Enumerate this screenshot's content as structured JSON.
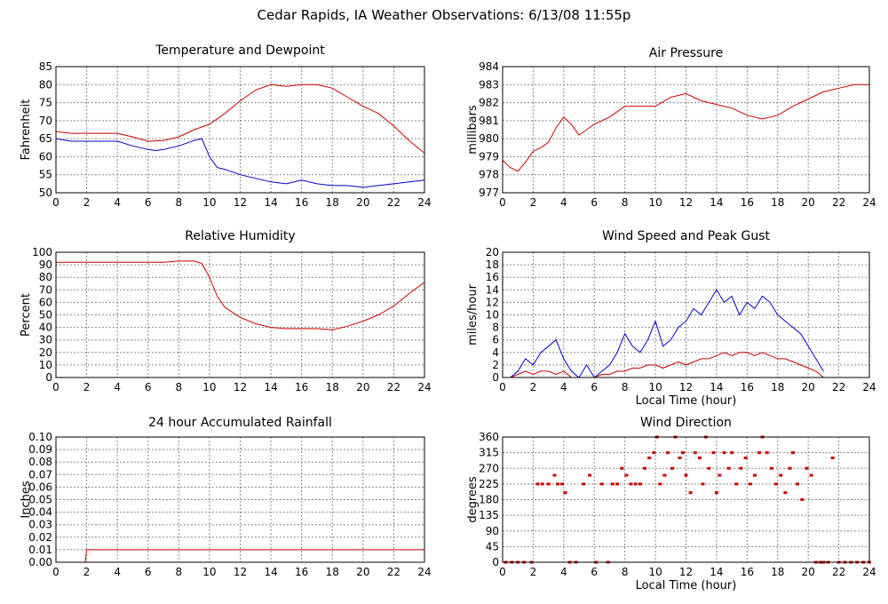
{
  "page": {
    "title": "Cedar Rapids, IA Weather Observations: 6/13/08 11:55p"
  },
  "chart_data": [
    {
      "id": "temp",
      "type": "line",
      "title": "Temperature and Dewpoint",
      "xlabel": "",
      "ylabel": "Fahrenheit",
      "xlim": [
        0,
        24
      ],
      "ylim": [
        50,
        85
      ],
      "xticks": [
        0,
        2,
        4,
        6,
        8,
        10,
        12,
        14,
        16,
        18,
        20,
        22,
        24
      ],
      "yticks": [
        50,
        55,
        60,
        65,
        70,
        75,
        80,
        85
      ],
      "grid": true,
      "series": [
        {
          "color": "#cc0000",
          "x": [
            0,
            1,
            2,
            3,
            4,
            5,
            6,
            7,
            8,
            9,
            10,
            11,
            12,
            13,
            14,
            15,
            16,
            17,
            18,
            19,
            20,
            21,
            22,
            23,
            24
          ],
          "y": [
            67,
            66.5,
            66.5,
            66.5,
            66.5,
            65.5,
            64.3,
            64.5,
            65.5,
            67.5,
            69,
            72,
            75.5,
            78.5,
            80,
            79.5,
            80,
            80,
            79,
            76.5,
            74,
            72,
            68.5,
            64.5,
            61
          ]
        },
        {
          "color": "#0000cc",
          "x": [
            0,
            1,
            2,
            3,
            4,
            5,
            6,
            6.5,
            7,
            8,
            9,
            9.5,
            10,
            10.5,
            11,
            12,
            13,
            14,
            15,
            16,
            17,
            18,
            19,
            20,
            21,
            22,
            23,
            24
          ],
          "y": [
            65,
            64.3,
            64.3,
            64.3,
            64.3,
            63,
            62,
            61.7,
            62,
            63,
            64.5,
            65,
            60,
            57,
            56.5,
            55,
            54,
            53,
            52.5,
            53.5,
            52.5,
            52,
            52,
            51.5,
            52,
            52.5,
            53,
            53.5
          ]
        }
      ]
    },
    {
      "id": "pressure",
      "type": "line",
      "title": "Air Pressure",
      "xlabel": "",
      "ylabel": "millibars",
      "xlim": [
        0,
        24
      ],
      "ylim": [
        977,
        984
      ],
      "xticks": [
        0,
        2,
        4,
        6,
        8,
        10,
        12,
        14,
        16,
        18,
        20,
        22,
        24
      ],
      "yticks": [
        977,
        978,
        979,
        980,
        981,
        982,
        983,
        984
      ],
      "grid": true,
      "series": [
        {
          "color": "#cc0000",
          "x": [
            0,
            0.5,
            1,
            1.5,
            2,
            2.5,
            3,
            3.5,
            4,
            4.5,
            5,
            6,
            7,
            8,
            9,
            10,
            11,
            12,
            13,
            14,
            15,
            16,
            17,
            18,
            19,
            20,
            21,
            22,
            23,
            24
          ],
          "y": [
            978.8,
            978.4,
            978.2,
            978.7,
            979.3,
            979.5,
            979.8,
            980.6,
            981.2,
            980.8,
            980.2,
            980.8,
            981.2,
            981.8,
            981.8,
            981.8,
            982.3,
            982.5,
            982.1,
            981.9,
            981.7,
            981.3,
            981.1,
            981.3,
            981.8,
            982.2,
            982.6,
            982.8,
            983.0,
            983.0
          ]
        }
      ]
    },
    {
      "id": "humidity",
      "type": "line",
      "title": "Relative Humidity",
      "xlabel": "",
      "ylabel": "Percent",
      "xlim": [
        0,
        24
      ],
      "ylim": [
        0,
        100
      ],
      "xticks": [
        0,
        2,
        4,
        6,
        8,
        10,
        12,
        14,
        16,
        18,
        20,
        22,
        24
      ],
      "yticks": [
        0,
        10,
        20,
        30,
        40,
        50,
        60,
        70,
        80,
        90,
        100
      ],
      "grid": true,
      "series": [
        {
          "color": "#cc0000",
          "x": [
            0,
            2,
            4,
            6,
            7,
            8,
            9,
            9.5,
            10,
            10.5,
            11,
            12,
            13,
            14,
            15,
            16,
            17,
            18,
            19,
            20,
            21,
            22,
            23,
            24
          ],
          "y": [
            92,
            92,
            92,
            92,
            92,
            93,
            93,
            91,
            80,
            65,
            56,
            48,
            43,
            40,
            39,
            39,
            39,
            38,
            41,
            45,
            50,
            57,
            67,
            76
          ]
        }
      ]
    },
    {
      "id": "wind",
      "type": "line",
      "title": "Wind Speed and Peak Gust",
      "xlabel": "Local Time (hour)",
      "ylabel": "miles/hour",
      "xlim": [
        0,
        24
      ],
      "ylim": [
        0,
        20
      ],
      "xticks": [
        0,
        2,
        4,
        6,
        8,
        10,
        12,
        14,
        16,
        18,
        20,
        22,
        24
      ],
      "yticks": [
        0,
        2,
        4,
        6,
        8,
        10,
        12,
        14,
        16,
        18,
        20
      ],
      "grid": true,
      "series": [
        {
          "color": "#0000cc",
          "x": [
            0.5,
            1,
            1.5,
            2,
            2.5,
            3,
            3.5,
            4,
            4.5,
            5,
            5.5,
            6,
            6.5,
            7,
            7.5,
            8,
            8.5,
            9,
            9.5,
            10,
            10.5,
            11,
            11.5,
            12,
            12.5,
            13,
            13.5,
            14,
            14.5,
            15,
            15.5,
            16,
            16.5,
            17,
            17.5,
            18,
            18.5,
            19,
            19.5,
            20,
            20.5,
            21
          ],
          "y": [
            0,
            1,
            3,
            2,
            4,
            5,
            6,
            3,
            1,
            0,
            2,
            0,
            1,
            2,
            4,
            7,
            5,
            4,
            6,
            9,
            5,
            6,
            8,
            9,
            11,
            10,
            12,
            14,
            12,
            13,
            10,
            12,
            11,
            13,
            12,
            10,
            9,
            8,
            7,
            5,
            3,
            1
          ]
        },
        {
          "color": "#cc0000",
          "x": [
            0.5,
            1,
            1.5,
            2,
            2.5,
            3,
            3.5,
            4,
            4.5,
            5,
            5.5,
            6,
            6.5,
            7,
            7.5,
            8,
            8.5,
            9,
            9.5,
            10,
            10.5,
            11,
            11.5,
            12,
            12.5,
            13,
            13.5,
            14,
            14.5,
            15,
            15.5,
            16,
            16.5,
            17,
            17.5,
            18,
            18.5,
            19,
            19.5,
            20,
            20.5,
            21
          ],
          "y": [
            0,
            0.5,
            1,
            0.5,
            1,
            1,
            0.5,
            1,
            0,
            0,
            0,
            0,
            0.5,
            0.5,
            1,
            1,
            1.5,
            1.5,
            2,
            2,
            1.5,
            2,
            2.5,
            2,
            2.5,
            3,
            3,
            3.5,
            4,
            3.5,
            4,
            4,
            3.5,
            4,
            3.5,
            3,
            3,
            2.5,
            2,
            1.5,
            1,
            0
          ]
        }
      ]
    },
    {
      "id": "rain",
      "type": "line",
      "title": "24 hour Accumulated Rainfall",
      "xlabel": "",
      "ylabel": "Inches",
      "xlim": [
        0,
        24
      ],
      "ylim": [
        0,
        0.1
      ],
      "xticks": [
        0,
        2,
        4,
        6,
        8,
        10,
        12,
        14,
        16,
        18,
        20,
        22,
        24
      ],
      "yticks": [
        "0.00",
        "0.01",
        "0.02",
        "0.03",
        "0.04",
        "0.05",
        "0.06",
        "0.07",
        "0.08",
        "0.09",
        "0.10"
      ],
      "grid": true,
      "series": [
        {
          "color": "#cc0000",
          "x": [
            0,
            1.9,
            2.0,
            24
          ],
          "y": [
            0,
            0,
            0.01,
            0.01
          ]
        }
      ]
    },
    {
      "id": "direction",
      "type": "scatter",
      "title": "Wind Direction",
      "xlabel": "Local Time (hour)",
      "ylabel": "degrees",
      "xlim": [
        0,
        24
      ],
      "ylim": [
        0,
        360
      ],
      "xticks": [
        0,
        2,
        4,
        6,
        8,
        10,
        12,
        14,
        16,
        18,
        20,
        22,
        24
      ],
      "yticks": [
        0,
        45,
        90,
        135,
        180,
        225,
        270,
        315,
        360
      ],
      "grid": true,
      "series": [
        {
          "color": "#cc0000",
          "x": [
            0.2,
            0.6,
            1.0,
            1.4,
            1.9,
            2.3,
            2.6,
            3.0,
            3.4,
            3.6,
            3.9,
            4.1,
            4.4,
            4.8,
            5.3,
            5.7,
            6.1,
            6.5,
            6.9,
            7.2,
            7.5,
            7.8,
            8.1,
            8.4,
            8.7,
            9.0,
            9.3,
            9.6,
            9.9,
            10.1,
            10.3,
            10.6,
            10.8,
            11.1,
            11.3,
            11.6,
            11.8,
            12.0,
            12.3,
            12.6,
            12.9,
            13.1,
            13.3,
            13.5,
            13.8,
            14.0,
            14.2,
            14.5,
            14.8,
            15.0,
            15.3,
            15.6,
            15.9,
            16.2,
            16.5,
            16.8,
            17.0,
            17.3,
            17.6,
            17.9,
            18.2,
            18.5,
            18.8,
            19.0,
            19.3,
            19.6,
            19.9,
            20.2,
            20.5,
            20.8,
            21.0,
            21.3,
            21.6,
            22.0,
            22.4,
            22.8,
            23.2,
            23.6,
            24.0
          ],
          "y": [
            0,
            0,
            0,
            0,
            0,
            225,
            225,
            225,
            250,
            225,
            225,
            200,
            0,
            0,
            225,
            250,
            0,
            225,
            0,
            225,
            225,
            270,
            250,
            225,
            225,
            225,
            270,
            300,
            315,
            360,
            225,
            250,
            315,
            270,
            360,
            300,
            315,
            250,
            200,
            315,
            300,
            225,
            360,
            270,
            315,
            200,
            250,
            315,
            270,
            315,
            225,
            270,
            300,
            225,
            250,
            315,
            360,
            315,
            270,
            225,
            250,
            200,
            270,
            315,
            225,
            180,
            270,
            250,
            0,
            0,
            0,
            0,
            300,
            0,
            0,
            0,
            0,
            0,
            0
          ]
        }
      ]
    }
  ]
}
